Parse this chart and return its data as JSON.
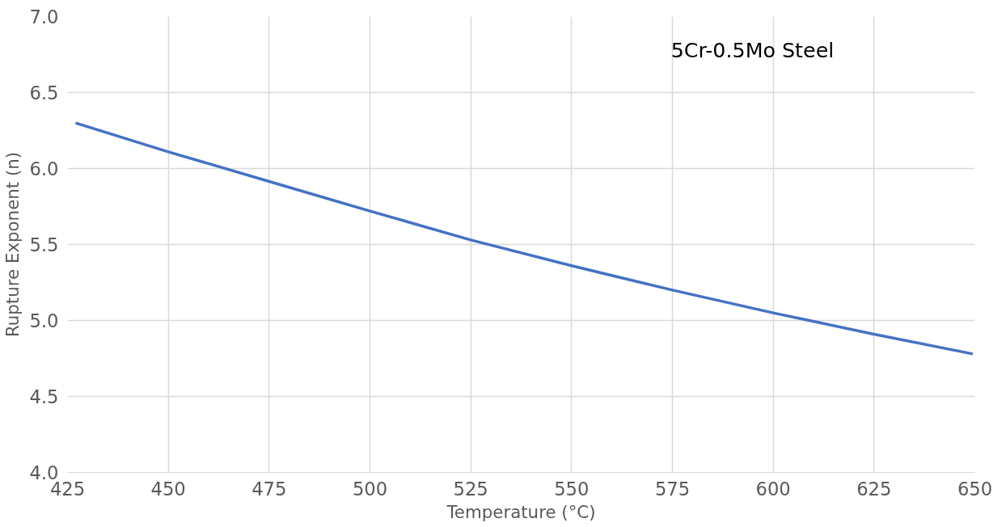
{
  "chart_data": {
    "type": "line",
    "title": "5Cr-0.5Mo Steel",
    "xlabel": "Temperature (°C)",
    "ylabel": "Rupture Exponent (n)",
    "x": [
      427,
      450,
      475,
      500,
      525,
      550,
      575,
      600,
      625,
      649.5
    ],
    "series": [
      {
        "color": "#4472c4",
        "values": [
          6.3,
          6.11,
          5.915,
          5.72,
          5.53,
          5.36,
          5.2,
          5.05,
          4.91,
          4.78
        ]
      }
    ],
    "xlim": [
      425,
      650
    ],
    "xticks": [
      425,
      450,
      475,
      500,
      525,
      550,
      575,
      600,
      625,
      650
    ],
    "ylim": [
      4.0,
      7.0
    ],
    "yticks": [
      {
        "value": 4.0,
        "label": "4.0"
      },
      {
        "value": 4.5,
        "label": "4.5"
      },
      {
        "value": 5.0,
        "label": "5.0"
      },
      {
        "value": 5.5,
        "label": "5.5"
      },
      {
        "value": 6.0,
        "label": "6.0"
      },
      {
        "value": 6.5,
        "label": "6.5"
      },
      {
        "value": 7.0,
        "label": "7.0"
      }
    ],
    "grid": true,
    "marker": "none",
    "line_style": "solid"
  }
}
